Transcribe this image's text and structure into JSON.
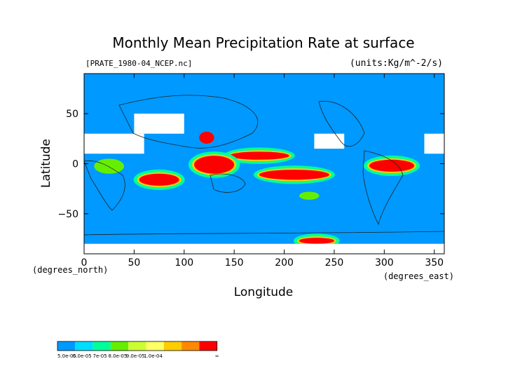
{
  "chart_data": {
    "type": "heatmap",
    "title": "Monthly Mean Precipitation Rate at surface",
    "subtitle_left": "[PRATE_1980-04_NCEP.nc]",
    "subtitle_right": "(units:Kg/m^-2/s)",
    "xlabel": "Longitude",
    "ylabel": "Latitude",
    "x_unit_label": "(degrees_east)",
    "y_unit_label": "(degrees_north)",
    "xlim": [
      0,
      360
    ],
    "ylim": [
      -90,
      90
    ],
    "x_ticks": [
      0,
      50,
      100,
      150,
      200,
      250,
      300,
      350
    ],
    "y_ticks": [
      -50,
      0,
      50
    ],
    "x_tick_labels": [
      "0",
      "50",
      "100",
      "150",
      "200",
      "250",
      "300",
      "350"
    ],
    "y_tick_labels": [
      "−50",
      "0",
      "50"
    ],
    "background_color": "#0099ff",
    "legend": {
      "placement": "bottom-left",
      "colors": [
        "#0099ff",
        "#00ddff",
        "#00ff99",
        "#66ee00",
        "#ccff33",
        "#ffff66",
        "#ffcc00",
        "#ff8800",
        "#ff0000"
      ],
      "labels": [
        "5.0e-05",
        "6.0e-05",
        "7e-05",
        "8.0e-05",
        "9.0e-05",
        "1.0e-04",
        "∞"
      ]
    },
    "regions": [
      {
        "kind": "heavy",
        "lon": [
          55,
          95
        ],
        "lat": [
          -22,
          -10
        ],
        "tint": "#ff0000"
      },
      {
        "kind": "heavy",
        "lon": [
          145,
          205
        ],
        "lat": [
          4,
          12
        ],
        "tint": "#ff0000"
      },
      {
        "kind": "heavy",
        "lon": [
          175,
          245
        ],
        "lat": [
          -16,
          -6
        ],
        "tint": "#ff0000"
      },
      {
        "kind": "heavy",
        "lon": [
          285,
          330
        ],
        "lat": [
          -8,
          4
        ],
        "tint": "#ff0000"
      },
      {
        "kind": "heavy",
        "lon": [
          110,
          150
        ],
        "lat": [
          -10,
          8
        ],
        "tint": "#ff0000"
      },
      {
        "kind": "heavy",
        "lon": [
          215,
          250
        ],
        "lat": [
          -80,
          -74
        ],
        "tint": "#ff0000"
      },
      {
        "kind": "moderate",
        "lon": [
          10,
          40
        ],
        "lat": [
          -10,
          5
        ],
        "tint": "#66ee00"
      },
      {
        "kind": "moderate",
        "lon": [
          115,
          130
        ],
        "lat": [
          20,
          32
        ],
        "tint": "#ff0000"
      },
      {
        "kind": "moderate",
        "lon": [
          215,
          235
        ],
        "lat": [
          -36,
          -28
        ],
        "tint": "#66ee00"
      },
      {
        "kind": "dry",
        "lon": [
          0,
          60
        ],
        "lat": [
          10,
          30
        ],
        "tint": "#ffffff"
      },
      {
        "kind": "dry",
        "lon": [
          50,
          100
        ],
        "lat": [
          30,
          50
        ],
        "tint": "#ffffff"
      },
      {
        "kind": "dry",
        "lon": [
          230,
          260
        ],
        "lat": [
          15,
          30
        ],
        "tint": "#ffffff"
      },
      {
        "kind": "dry",
        "lon": [
          340,
          360
        ],
        "lat": [
          10,
          30
        ],
        "tint": "#ffffff"
      },
      {
        "kind": "dry",
        "lon": [
          0,
          360
        ],
        "lat": [
          -90,
          -80
        ],
        "tint": "#ffffff"
      }
    ]
  }
}
